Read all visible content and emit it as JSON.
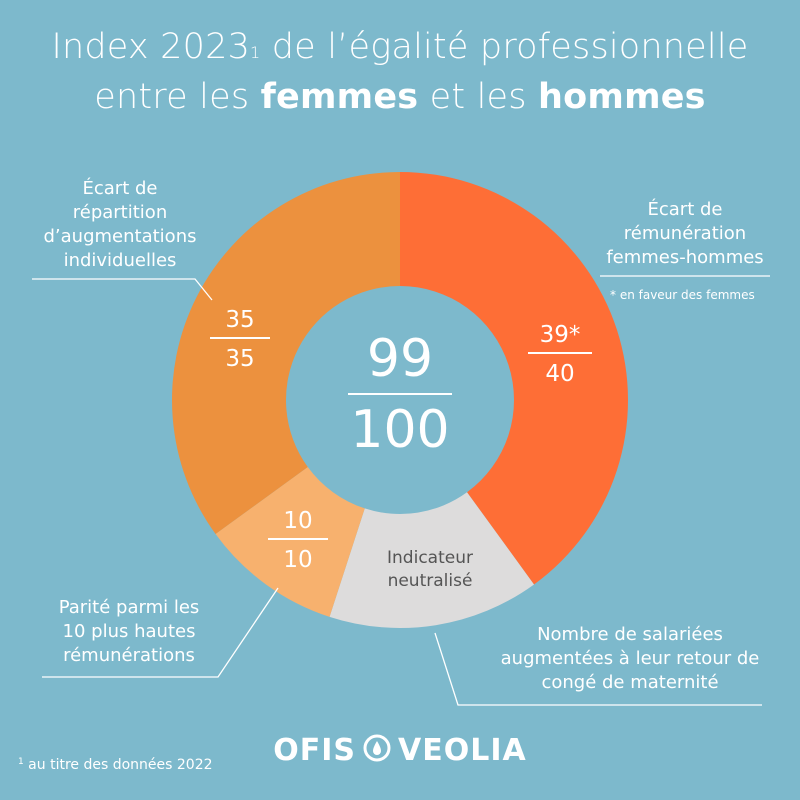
{
  "title": {
    "line1_a": "Index 2023",
    "line1_sup": "1",
    "line1_b": " de l’égalité professionnelle",
    "line2_a": "entre les ",
    "line2_b": "femmes",
    "line2_c": " et les ",
    "line2_d": "hommes"
  },
  "chart_data": {
    "type": "pie",
    "total": {
      "score": "99",
      "max": "100"
    },
    "slices": [
      {
        "name": "Écart de rémunération femmes-hommes",
        "score": "39*",
        "max": "40",
        "value": 40,
        "color": "#fe6e36"
      },
      {
        "name": "Nombre de salariées augmentées à leur retour de congé de maternité",
        "score": "",
        "max": "",
        "value": 15,
        "color": "#dddcdc",
        "inner_label": "Indicateur neutralisé"
      },
      {
        "name": "Parité parmi les 10 plus hautes rémunérations",
        "score": "10",
        "max": "10",
        "value": 10,
        "color": "#f7b16e"
      },
      {
        "name": "Écart de répartition d’augmentations individuelles",
        "score": "35",
        "max": "35",
        "value": 35,
        "color": "#ec913e"
      }
    ]
  },
  "labels": {
    "remuneration": [
      "Écart de",
      "rémunération",
      "femmes-hommes"
    ],
    "augmentations": [
      "Écart de",
      "répartition",
      "d’augmentations",
      "individuelles"
    ],
    "parite": [
      "Parité parmi les",
      "10 plus hautes",
      "rémunérations"
    ],
    "maternite": [
      "Nombre de salariées",
      "augmentées à leur retour de",
      "congé de maternité"
    ],
    "neutralise": [
      "Indicateur",
      "neutralisé"
    ]
  },
  "footnote_star": "* en faveur des femmes",
  "footnote": {
    "sup": "1",
    "text": " au titre des données 2022"
  },
  "logo": {
    "left": "OFIS",
    "right": "VEOLIA"
  },
  "colors": {
    "background": "#7db9cc",
    "text": "#ffffff",
    "leader_line": "#ffffff"
  }
}
